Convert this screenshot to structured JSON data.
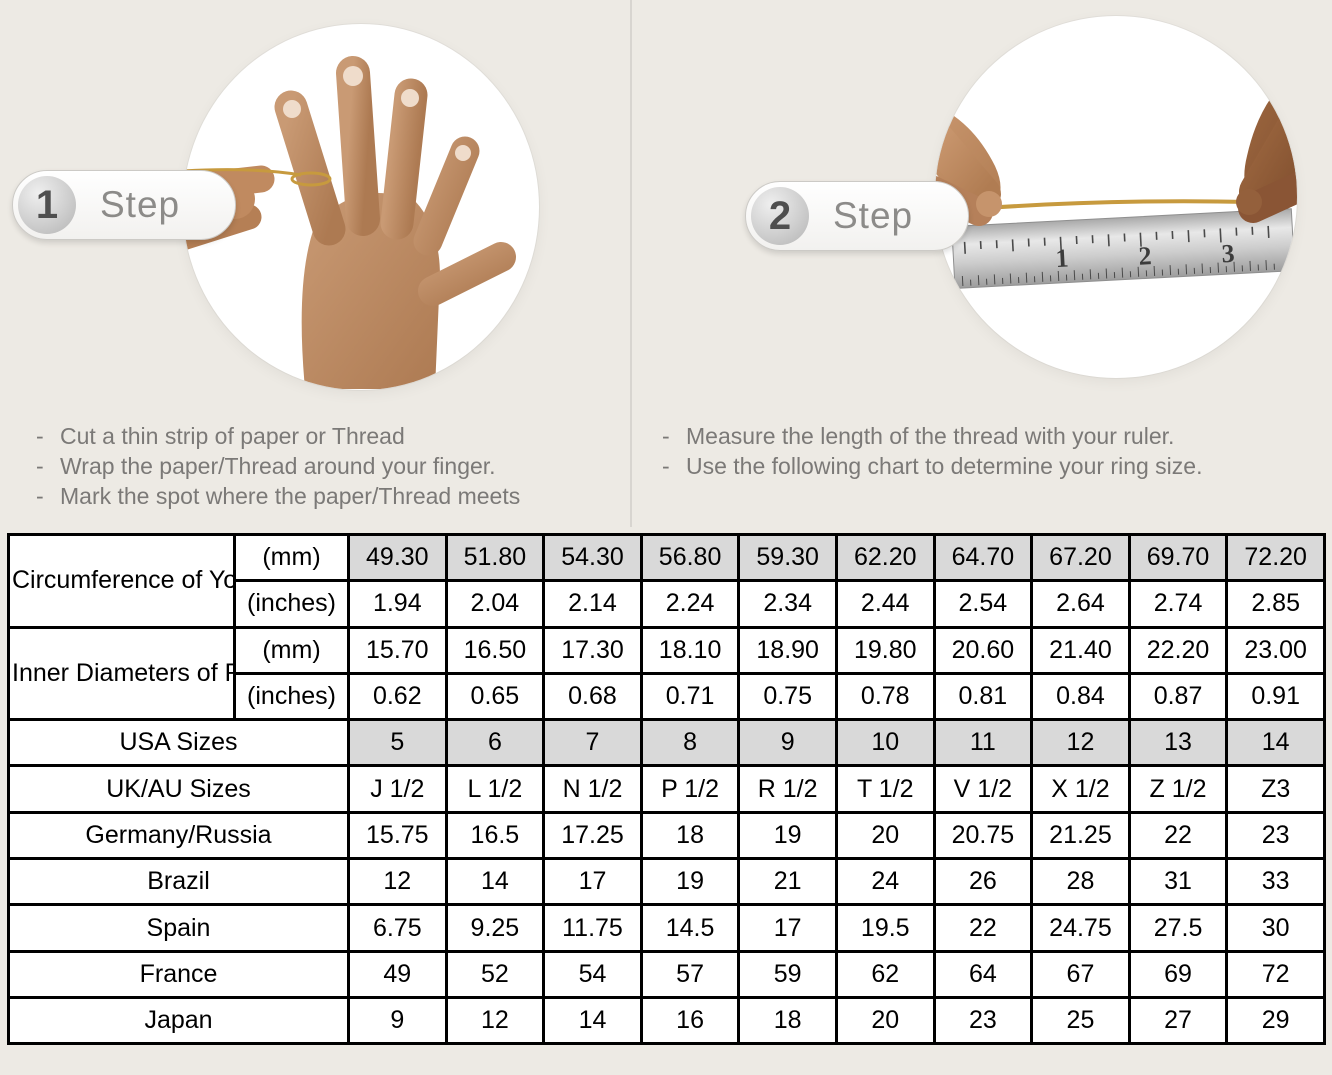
{
  "steps": [
    {
      "number": "1",
      "label": "Step",
      "instructions": [
        "Cut a thin strip of paper or Thread",
        "Wrap the paper/Thread around your finger.",
        "Mark the spot where the paper/Thread meets"
      ]
    },
    {
      "number": "2",
      "label": "Step",
      "instructions": [
        "Measure the length of the thread with your ruler.",
        "Use the following chart to determine your ring size."
      ]
    }
  ],
  "ruler": {
    "numbers": [
      "1",
      "2",
      "3"
    ]
  },
  "colors": {
    "background": "#edeae4",
    "highlight_cell": "#d9d9d9",
    "table_border": "#000000",
    "thread_gold": "#c79a3e"
  },
  "size_chart": {
    "row_groups": [
      {
        "label": "Circumference of Your Finger",
        "rows": [
          {
            "unit": "(mm)",
            "highlight": true,
            "values": [
              "49.30",
              "51.80",
              "54.30",
              "56.80",
              "59.30",
              "62.20",
              "64.70",
              "67.20",
              "69.70",
              "72.20"
            ]
          },
          {
            "unit": "(inches)",
            "highlight": false,
            "values": [
              "1.94",
              "2.04",
              "2.14",
              "2.24",
              "2.34",
              "2.44",
              "2.54",
              "2.64",
              "2.74",
              "2.85"
            ]
          }
        ]
      },
      {
        "label": "Inner Diameters of Rings",
        "rows": [
          {
            "unit": "(mm)",
            "highlight": false,
            "values": [
              "15.70",
              "16.50",
              "17.30",
              "18.10",
              "18.90",
              "19.80",
              "20.60",
              "21.40",
              "22.20",
              "23.00"
            ]
          },
          {
            "unit": "(inches)",
            "highlight": false,
            "values": [
              "0.62",
              "0.65",
              "0.68",
              "0.71",
              "0.75",
              "0.78",
              "0.81",
              "0.84",
              "0.87",
              "0.91"
            ]
          }
        ]
      }
    ],
    "simple_rows": [
      {
        "label": "USA Sizes",
        "highlight": true,
        "values": [
          "5",
          "6",
          "7",
          "8",
          "9",
          "10",
          "11",
          "12",
          "13",
          "14"
        ]
      },
      {
        "label": "UK/AU Sizes",
        "highlight": false,
        "values": [
          "J 1/2",
          "L 1/2",
          "N 1/2",
          "P 1/2",
          "R 1/2",
          "T 1/2",
          "V 1/2",
          "X 1/2",
          "Z 1/2",
          "Z3"
        ]
      },
      {
        "label": "Germany/Russia",
        "highlight": false,
        "values": [
          "15.75",
          "16.5",
          "17.25",
          "18",
          "19",
          "20",
          "20.75",
          "21.25",
          "22",
          "23"
        ]
      },
      {
        "label": "Brazil",
        "highlight": false,
        "values": [
          "12",
          "14",
          "17",
          "19",
          "21",
          "24",
          "26",
          "28",
          "31",
          "33"
        ]
      },
      {
        "label": "Spain",
        "highlight": false,
        "values": [
          "6.75",
          "9.25",
          "11.75",
          "14.5",
          "17",
          "19.5",
          "22",
          "24.75",
          "27.5",
          "30"
        ]
      },
      {
        "label": "France",
        "highlight": false,
        "values": [
          "49",
          "52",
          "54",
          "57",
          "59",
          "62",
          "64",
          "67",
          "69",
          "72"
        ]
      },
      {
        "label": "Japan",
        "highlight": false,
        "values": [
          "9",
          "12",
          "14",
          "16",
          "18",
          "20",
          "23",
          "25",
          "27",
          "29"
        ]
      }
    ]
  }
}
